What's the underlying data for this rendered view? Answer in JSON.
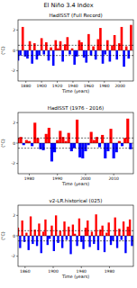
{
  "title": "El Niño 3.4 Index",
  "chart_data": [
    {
      "type": "bar",
      "title": "HadISST (Full Record)",
      "x_label": "Time (years)",
      "y_label": "(°C)",
      "x": [
        1870,
        1873,
        1876,
        1879,
        1882,
        1885,
        1888,
        1891,
        1894,
        1897,
        1900,
        1903,
        1906,
        1909,
        1912,
        1915,
        1918,
        1921,
        1924,
        1927,
        1930,
        1933,
        1936,
        1939,
        1942,
        1945,
        1948,
        1951,
        1954,
        1957,
        1960,
        1963,
        1966,
        1969,
        1972,
        1975,
        1978,
        1981,
        1984,
        1987,
        1990,
        1993,
        1996,
        1999,
        2002,
        2005,
        2008,
        2011,
        2014
      ],
      "values": [
        -1.0,
        -0.5,
        2.3,
        -0.6,
        -0.8,
        0.9,
        -1.3,
        0.7,
        -0.9,
        -0.5,
        1.2,
        -0.4,
        0.8,
        -1.0,
        0.3,
        -1.5,
        1.0,
        0.2,
        0.9,
        -1.1,
        0.6,
        1.3,
        -0.4,
        0.2,
        -1.4,
        -0.6,
        1.0,
        0.8,
        -0.7,
        -1.2,
        1.6,
        -0.5,
        0.4,
        -0.9,
        1.1,
        2.2,
        -1.3,
        -0.4,
        1.0,
        -1.1,
        0.5,
        1.5,
        -0.9,
        0.7,
        2.3,
        -1.6,
        0.4,
        -0.8,
        2.5
      ],
      "colors": [
        "blue",
        "blue",
        "red",
        "blue",
        "blue",
        "red",
        "blue",
        "red",
        "blue",
        "blue",
        "red",
        "blue",
        "red",
        "blue",
        "red",
        "blue",
        "red",
        "red",
        "red",
        "blue",
        "red",
        "red",
        "blue",
        "red",
        "blue",
        "blue",
        "red",
        "red",
        "blue",
        "blue",
        "red",
        "blue",
        "red",
        "blue",
        "red",
        "red",
        "blue",
        "blue",
        "red",
        "blue",
        "red",
        "red",
        "blue",
        "red",
        "red",
        "blue",
        "red",
        "blue",
        "red"
      ],
      "xlim": [
        1870,
        2017
      ],
      "xticks": [
        1880,
        1900,
        1920,
        1940,
        1960,
        1980,
        2000
      ],
      "ylim": [
        -3,
        3
      ],
      "yticks": [
        -2,
        0,
        2
      ],
      "reference_lines": [
        -0.5,
        0.5
      ]
    },
    {
      "type": "bar",
      "title": "HadISST (1976 - 2016)",
      "x_label": "Time (years)",
      "y_label": "(°C)",
      "x": [
        1976,
        1977,
        1978,
        1979,
        1980,
        1981,
        1982,
        1983,
        1984,
        1985,
        1986,
        1987,
        1988,
        1989,
        1990,
        1991,
        1992,
        1993,
        1994,
        1995,
        1996,
        1997,
        1998,
        1999,
        2000,
        2001,
        2002,
        2003,
        2004,
        2005,
        2006,
        2007,
        2008,
        2009,
        2010,
        2011,
        2012,
        2013,
        2014,
        2015,
        2016
      ],
      "values": [
        0.5,
        0.6,
        -0.2,
        0.3,
        0.2,
        -0.3,
        2.0,
        0.5,
        -0.6,
        -0.7,
        0.9,
        1.5,
        -1.8,
        -0.9,
        0.3,
        1.2,
        0.6,
        0.2,
        1.0,
        -0.8,
        -0.5,
        2.3,
        -1.4,
        -1.5,
        -0.8,
        -0.2,
        1.1,
        0.3,
        0.6,
        -0.4,
        0.8,
        -1.5,
        -0.8,
        1.4,
        -1.5,
        -0.9,
        0.2,
        -0.3,
        0.5,
        2.4,
        -0.6
      ],
      "colors": [
        "red",
        "red",
        "blue",
        "red",
        "red",
        "blue",
        "red",
        "red",
        "blue",
        "blue",
        "red",
        "red",
        "blue",
        "blue",
        "red",
        "red",
        "red",
        "red",
        "red",
        "blue",
        "blue",
        "red",
        "blue",
        "blue",
        "blue",
        "blue",
        "red",
        "red",
        "red",
        "blue",
        "red",
        "blue",
        "blue",
        "red",
        "blue",
        "blue",
        "red",
        "blue",
        "red",
        "red",
        "blue"
      ],
      "xlim": [
        1976,
        2017
      ],
      "xticks": [
        1980,
        1990,
        2000,
        2010
      ],
      "ylim": [
        -3,
        3
      ],
      "yticks": [
        -2,
        0,
        2
      ],
      "reference_lines": [
        -0.5,
        0.5
      ]
    },
    {
      "type": "bar",
      "title": "v2-LR.historical (025)",
      "x_label": "Time (years)",
      "y_label": "(°C)",
      "x": [
        1850,
        1853,
        1856,
        1859,
        1862,
        1865,
        1868,
        1871,
        1874,
        1877,
        1880,
        1883,
        1886,
        1889,
        1892,
        1895,
        1898,
        1901,
        1904,
        1907,
        1910,
        1913,
        1916,
        1919,
        1922,
        1925,
        1928,
        1931,
        1934,
        1937,
        1940,
        1943,
        1946,
        1949,
        1952,
        1955,
        1958,
        1961,
        1964,
        1967,
        1970,
        1973,
        1976,
        1979,
        1982,
        1985,
        1988,
        1991,
        1994,
        1997,
        2000,
        2003,
        2006,
        2009,
        2012
      ],
      "values": [
        0.8,
        -1.2,
        1.5,
        -0.6,
        0.3,
        -1.4,
        1.9,
        -0.8,
        0.6,
        -1.0,
        1.2,
        -1.7,
        0.4,
        1.6,
        -0.9,
        -0.3,
        1.0,
        -1.5,
        2.0,
        -0.7,
        0.5,
        -1.2,
        1.4,
        -0.4,
        0.9,
        -1.8,
        1.1,
        0.2,
        -1.0,
        1.7,
        -0.6,
        -1.3,
        0.8,
        1.5,
        -1.1,
        0.4,
        -0.8,
        2.1,
        -1.4,
        0.6,
        1.0,
        -1.6,
        0.3,
        1.3,
        -0.9,
        -0.5,
        1.8,
        -1.2,
        0.7,
        -0.4,
        1.4,
        -1.7,
        0.9,
        1.6,
        -1.0
      ],
      "colors": [
        "red",
        "blue",
        "red",
        "blue",
        "red",
        "blue",
        "red",
        "blue",
        "red",
        "blue",
        "red",
        "blue",
        "red",
        "red",
        "blue",
        "blue",
        "red",
        "blue",
        "red",
        "blue",
        "red",
        "blue",
        "red",
        "blue",
        "red",
        "blue",
        "red",
        "red",
        "blue",
        "red",
        "blue",
        "blue",
        "red",
        "red",
        "blue",
        "red",
        "blue",
        "red",
        "blue",
        "red",
        "red",
        "blue",
        "red",
        "red",
        "blue",
        "blue",
        "red",
        "blue",
        "red",
        "blue",
        "red",
        "blue",
        "red",
        "red",
        "blue"
      ],
      "xlim": [
        1850,
        2014
      ],
      "xticks": [
        1860,
        1900,
        1940,
        1980
      ],
      "ylim": [
        -3,
        3
      ],
      "yticks": [
        -2,
        0,
        2
      ],
      "reference_lines": [
        -0.5,
        0.5
      ]
    }
  ]
}
